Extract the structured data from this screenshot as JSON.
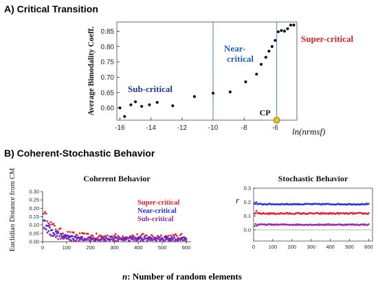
{
  "figure": {
    "section_a_heading": "A) Critical Transition",
    "section_b_heading": "B) Coherent-Stochastic Behavior",
    "bottom_xlabel_bold": "n",
    "bottom_xlabel_rest": ": Number of random elements"
  },
  "chart_data": [
    {
      "type": "scatter",
      "title": "",
      "xlabel": "ln(nrmsf)",
      "ylabel": "Average Bimodality Coeff.",
      "xlim": [
        -16.2,
        -4.6
      ],
      "ylim": [
        0.56,
        0.88
      ],
      "xticks": [
        -16,
        -14,
        -12,
        -10,
        -8,
        -6
      ],
      "yticks": [
        0.6,
        0.65,
        0.7,
        0.75,
        0.8,
        0.85
      ],
      "grid": false,
      "x": [
        -16.0,
        -15.7,
        -15.3,
        -15.0,
        -14.6,
        -14.1,
        -13.6,
        -12.6,
        -11.2,
        -10.0,
        -8.9,
        -7.9,
        -7.2,
        -6.9,
        -6.6,
        -6.4,
        -6.2,
        -6.0,
        -5.8,
        -5.6,
        -5.4,
        -5.2,
        -5.0,
        -4.8
      ],
      "y": [
        0.6,
        0.572,
        0.61,
        0.62,
        0.605,
        0.61,
        0.618,
        0.607,
        0.637,
        0.648,
        0.652,
        0.685,
        0.71,
        0.742,
        0.765,
        0.785,
        0.8,
        0.82,
        0.848,
        0.852,
        0.85,
        0.858,
        0.87,
        0.87
      ],
      "vlines": [
        -10.0,
        -5.9
      ],
      "regions": [
        {
          "label": "Sub-critical",
          "color": "#1f3a8a"
        },
        {
          "label": "Near-critical",
          "color": "#1f5fbf"
        },
        {
          "label": "Super-critical",
          "color": "#e02020"
        }
      ],
      "highlight": {
        "label": "CP",
        "x": -5.9,
        "y": 0.56,
        "color": "#e8c21a"
      }
    },
    {
      "type": "scatter",
      "title": "Coherent Behavior",
      "xlabel": "",
      "ylabel": "Euclidian Distance from CM",
      "xlim": [
        0,
        620
      ],
      "ylim": [
        0,
        0.3
      ],
      "xticks": [
        0,
        100,
        200,
        300,
        400,
        500,
        600
      ],
      "yticks": [
        0.0,
        0.05,
        0.1,
        0.15,
        0.2,
        0.25,
        0.3
      ],
      "grid": false,
      "legend_position": "top-right",
      "series": [
        {
          "name": "Super-critical",
          "color": "#e8202a",
          "model": {
            "a": 0.03,
            "b": 0.17,
            "k": 45,
            "noise": 0.018
          }
        },
        {
          "name": "Near-critical",
          "color": "#2a2ae8",
          "model": {
            "a": 0.018,
            "b": 0.13,
            "k": 40,
            "noise": 0.012
          }
        },
        {
          "name": "Sub-critical",
          "color": "#9a2aa8",
          "model": {
            "a": 0.012,
            "b": 0.09,
            "k": 35,
            "noise": 0.01
          }
        }
      ]
    },
    {
      "type": "scatter",
      "title": "Stochastic Behavior",
      "xlabel": "",
      "ylabel": "r",
      "xlim": [
        0,
        620
      ],
      "ylim": [
        -0.08,
        0.3
      ],
      "xticks": [
        0,
        100,
        200,
        300,
        400,
        500,
        600
      ],
      "yticks": [
        0.0,
        0.1,
        0.2,
        0.3
      ],
      "grid": false,
      "zero_line": 0.0,
      "series": [
        {
          "name": "",
          "color": "#2a2ae8",
          "level": 0.185,
          "noise": 0.004
        },
        {
          "name": "",
          "color": "#e8202a",
          "level": 0.118,
          "noise": 0.005
        },
        {
          "name": "",
          "color": "#9a2aa8",
          "level": 0.038,
          "noise": 0.004
        }
      ]
    }
  ]
}
